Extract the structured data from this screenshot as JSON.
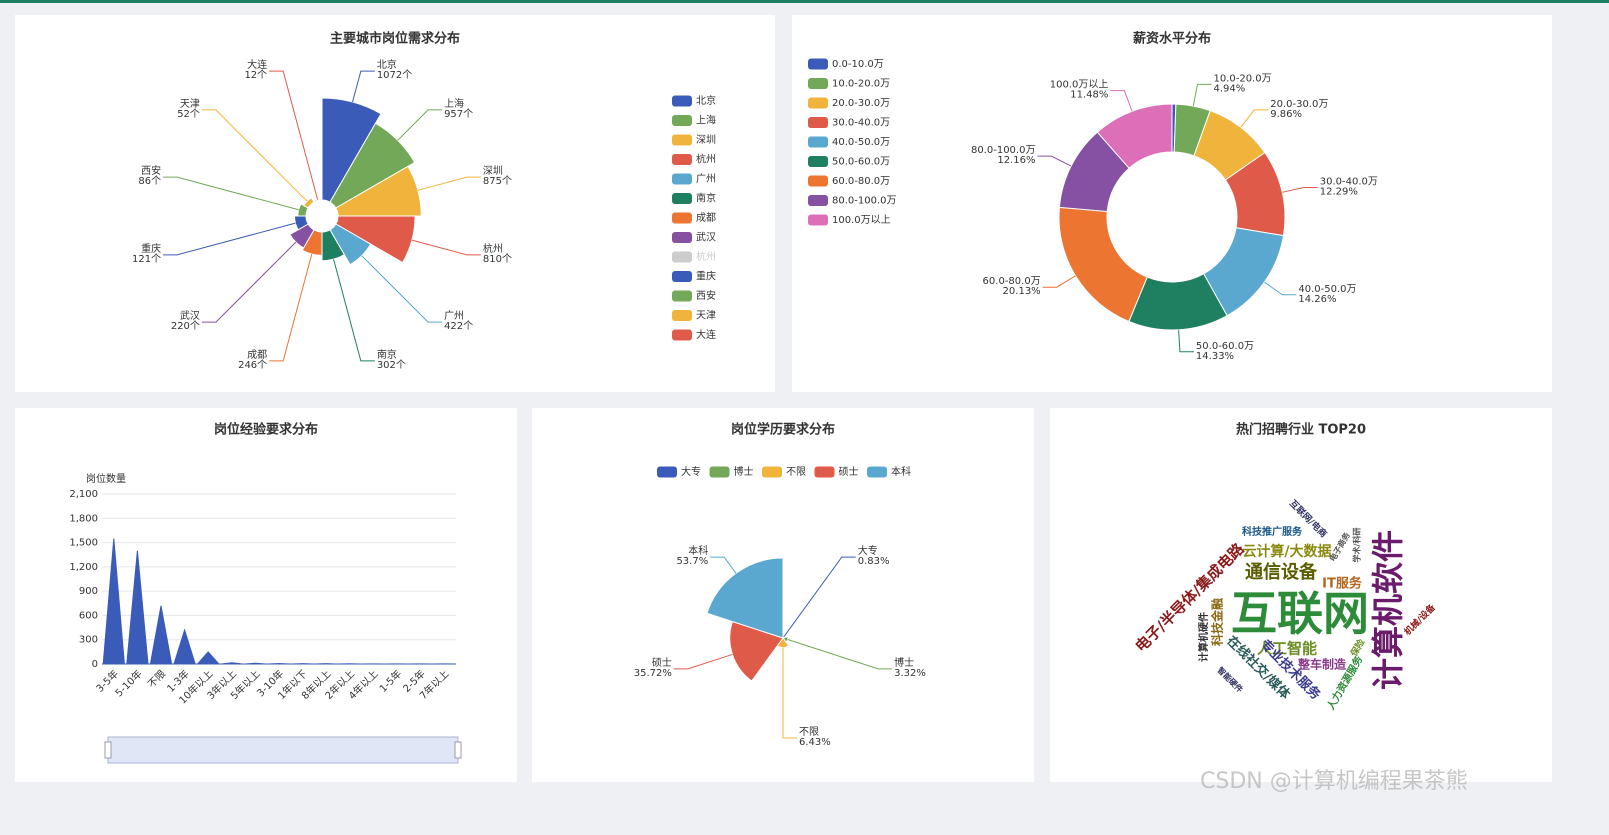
{
  "chart_data": [
    {
      "type": "rose",
      "title": "主要城市岗位需求分布",
      "categories": [
        "北京",
        "上海",
        "深圳",
        "杭州",
        "广州",
        "南京",
        "成都",
        "武汉",
        "杭州",
        "重庆",
        "西安",
        "天津",
        "大连"
      ],
      "values": [
        1072,
        957,
        875,
        810,
        422,
        302,
        246,
        220,
        null,
        121,
        86,
        52,
        12
      ],
      "value_labels": [
        "1072个",
        "957个",
        "875个",
        "810个",
        "422个",
        "302个",
        "246个",
        "220个",
        null,
        "121个",
        "86个",
        "52个",
        "12个"
      ],
      "colors": [
        "#3b5bb8",
        "#72a857",
        "#f0b43c",
        "#e05a4a",
        "#5aa7cf",
        "#1e8060",
        "#ec7532",
        "#8650a3",
        "#cccccc",
        "#3b5bb8",
        "#72a857",
        "#f0b43c",
        "#e05a4a"
      ],
      "legend": "right"
    },
    {
      "type": "donut",
      "title": "薪资水平分布",
      "categories": [
        "0.0-10.0万",
        "10.0-20.0万",
        "20.0-30.0万",
        "30.0-40.0万",
        "40.0-50.0万",
        "50.0-60.0万",
        "60.0-80.0万",
        "80.0-100.0万",
        "100.0万以上"
      ],
      "values": [
        0.55,
        4.94,
        9.86,
        12.29,
        14.26,
        14.33,
        20.13,
        12.16,
        11.48
      ],
      "value_labels": [
        null,
        "4.94%",
        "9.86%",
        "12.29%",
        "14.26%",
        "14.33%",
        "20.13%",
        "12.16%",
        "11.48%"
      ],
      "colors": [
        "#3b5bb8",
        "#72a857",
        "#f0b43c",
        "#e05a4a",
        "#5aa7cf",
        "#1e8060",
        "#ec7532",
        "#8650a3",
        "#dd6fb8"
      ],
      "legend": "top-left"
    },
    {
      "type": "area",
      "title": "岗位经验要求分布",
      "y_label": "岗位数量",
      "categories": [
        "3-5年",
        "5-10年",
        "不限",
        "1-3年",
        "10年以上",
        "3年以上",
        "5年以上",
        "3-10年",
        "1年以下",
        "8年以上",
        "2年以上",
        "4年以上",
        "1-5年",
        "2-5年",
        "7年以上"
      ],
      "values": [
        1550,
        1400,
        720,
        420,
        150,
        15,
        10,
        6,
        5,
        4,
        3,
        2,
        2,
        2,
        1
      ],
      "color": "#3b5bb8",
      "ylim": [
        0,
        2100
      ],
      "yticks": [
        0,
        300,
        600,
        900,
        {
          "value": 1200,
          "label": "1,200"
        },
        {
          "value": 1500,
          "label": "1,500"
        },
        {
          "value": 1800,
          "label": "1,800"
        },
        {
          "value": 2100,
          "label": "2,100"
        }
      ],
      "grid": true
    },
    {
      "type": "rose",
      "title": "岗位学历要求分布",
      "categories": [
        "大专",
        "博士",
        "不限",
        "硕士",
        "本科"
      ],
      "values": [
        0.83,
        3.32,
        6.43,
        35.72,
        53.7
      ],
      "value_labels": [
        "0.83%",
        "3.32%",
        "6.43%",
        "35.72%",
        "53.7%"
      ],
      "colors": [
        "#3b5bb8",
        "#72a857",
        "#f0b43c",
        "#e05a4a",
        "#5aa7cf"
      ],
      "legend": "top"
    },
    {
      "type": "wordcloud",
      "title": "热门招聘行业 TOP20",
      "words": [
        "互联网",
        "计算机软件",
        "通信设备",
        "云计算/大数据",
        "电子/半导体/集成电路",
        "人工智能",
        "IT服务",
        "专业技术服务",
        "在线社交/媒体",
        "整车制造",
        "科技金融",
        "计算机硬件",
        "科技推广服务",
        "互联网/电商",
        "电子商务",
        "学术/科研",
        "机械/设备",
        "人力资源服务",
        "保险",
        "智能硬件"
      ]
    }
  ],
  "watermark": "CSDN @计算机编程果茶熊"
}
